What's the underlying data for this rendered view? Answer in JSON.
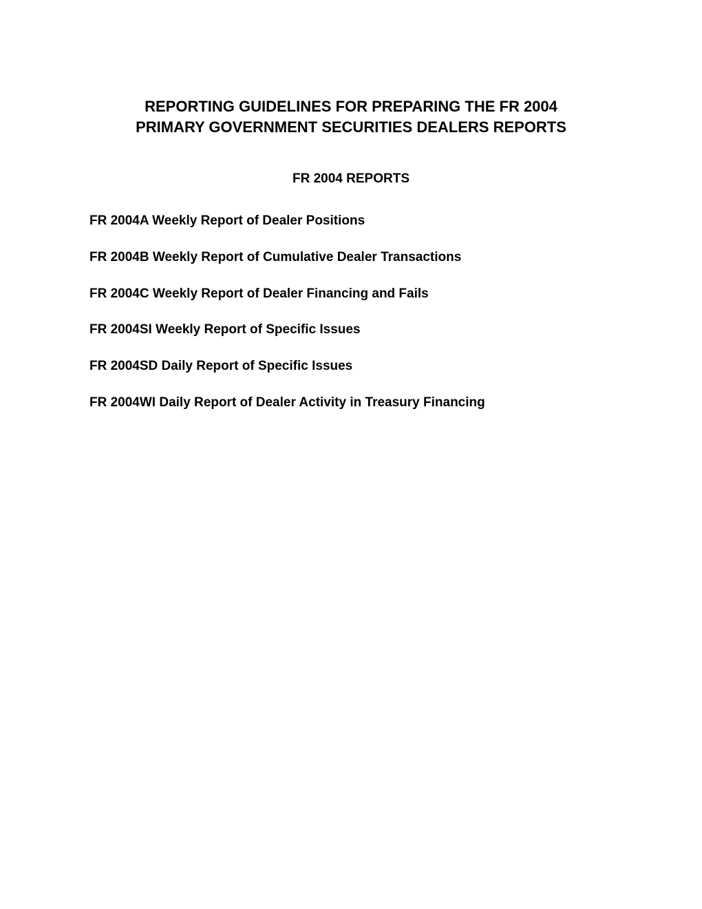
{
  "title": {
    "line1": "REPORTING GUIDELINES FOR PREPARING THE FR 2004",
    "line2": "PRIMARY GOVERNMENT SECURITIES DEALERS REPORTS"
  },
  "subtitle": "FR 2004 REPORTS",
  "reports": [
    "FR 2004A Weekly Report of Dealer Positions",
    "FR 2004B Weekly Report of Cumulative Dealer Transactions",
    "FR 2004C Weekly Report of Dealer Financing and Fails",
    "FR 2004SI Weekly Report of Specific Issues",
    "FR 2004SD Daily Report of Specific Issues",
    "FR 2004WI Daily Report of Dealer Activity in Treasury Financing"
  ],
  "colors": {
    "background": "#ffffff",
    "text": "#000000"
  }
}
